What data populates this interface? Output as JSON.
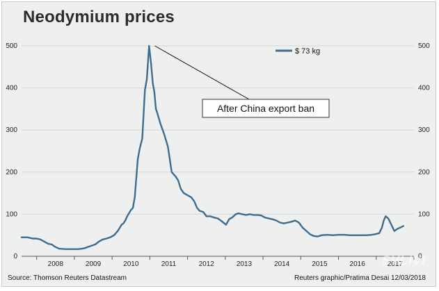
{
  "title": "Neodymium prices",
  "source": "Source: Thomson Reuters Datastream",
  "credit": "Reuters graphic/Pratima Desai 12/03/2018",
  "watermark": "SVLIVI",
  "colors": {
    "line": "#3f6b8c",
    "background": "#eef0ef",
    "gridline": "#d4d6d4"
  },
  "chart_data": {
    "type": "line",
    "title": "Neodymium prices",
    "xlabel": "",
    "ylabel": "",
    "ylim": [
      0,
      500
    ],
    "xlim": [
      2007.6,
      2018.0
    ],
    "yticks": [
      0,
      100,
      200,
      300,
      400,
      500
    ],
    "xticks": [
      "2008",
      "2009",
      "2010",
      "2011",
      "2012",
      "2013",
      "2014",
      "2015",
      "2016",
      "2017"
    ],
    "grid": "horizontal",
    "legend": "top-center",
    "annotations": [
      {
        "text": "After China export ban",
        "x": 2011.13,
        "y": 500
      }
    ],
    "series": [
      {
        "name": "$ 73 kg",
        "x": [
          2007.6,
          2007.75,
          2007.9,
          2008.0,
          2008.1,
          2008.2,
          2008.3,
          2008.4,
          2008.5,
          2008.6,
          2008.75,
          2008.9,
          2009.0,
          2009.1,
          2009.2,
          2009.3,
          2009.35,
          2009.45,
          2009.55,
          2009.65,
          2009.75,
          2009.85,
          2009.95,
          2010.05,
          2010.15,
          2010.25,
          2010.3,
          2010.35,
          2010.4,
          2010.5,
          2010.55,
          2010.6,
          2010.68,
          2010.73,
          2010.8,
          2010.87,
          2010.92,
          2010.98,
          2011.03,
          2011.08,
          2011.12,
          2011.16,
          2011.2,
          2011.28,
          2011.38,
          2011.48,
          2011.58,
          2011.68,
          2011.75,
          2011.82,
          2011.9,
          2012.0,
          2012.1,
          2012.18,
          2012.25,
          2012.32,
          2012.42,
          2012.5,
          2012.6,
          2012.7,
          2012.8,
          2012.88,
          2012.95,
          2013.02,
          2013.1,
          2013.18,
          2013.28,
          2013.35,
          2013.45,
          2013.55,
          2013.65,
          2013.75,
          2013.85,
          2013.95,
          2014.05,
          2014.15,
          2014.25,
          2014.35,
          2014.45,
          2014.55,
          2014.65,
          2014.75,
          2014.85,
          2014.95,
          2015.05,
          2015.15,
          2015.25,
          2015.35,
          2015.45,
          2015.55,
          2015.7,
          2015.85,
          2016.0,
          2016.15,
          2016.3,
          2016.45,
          2016.6,
          2016.75,
          2016.88,
          2017.0,
          2017.08,
          2017.15,
          2017.2,
          2017.25,
          2017.32,
          2017.4,
          2017.48,
          2017.56,
          2017.63,
          2017.72
        ],
        "y": [
          45,
          45,
          42,
          42,
          40,
          35,
          30,
          28,
          22,
          18,
          17,
          17,
          17,
          17,
          18,
          20,
          22,
          25,
          28,
          35,
          40,
          42,
          45,
          50,
          60,
          75,
          78,
          85,
          95,
          110,
          115,
          140,
          230,
          255,
          280,
          395,
          420,
          500,
          460,
          410,
          390,
          350,
          340,
          315,
          290,
          260,
          200,
          190,
          180,
          160,
          150,
          145,
          140,
          130,
          115,
          108,
          105,
          95,
          95,
          92,
          90,
          85,
          80,
          75,
          88,
          92,
          100,
          102,
          100,
          98,
          100,
          98,
          98,
          97,
          92,
          90,
          88,
          85,
          80,
          78,
          80,
          82,
          85,
          80,
          68,
          60,
          52,
          48,
          47,
          50,
          51,
          50,
          51,
          51,
          50,
          50,
          50,
          50,
          51,
          53,
          55,
          68,
          85,
          95,
          90,
          75,
          60,
          65,
          68,
          72
        ]
      }
    ]
  }
}
